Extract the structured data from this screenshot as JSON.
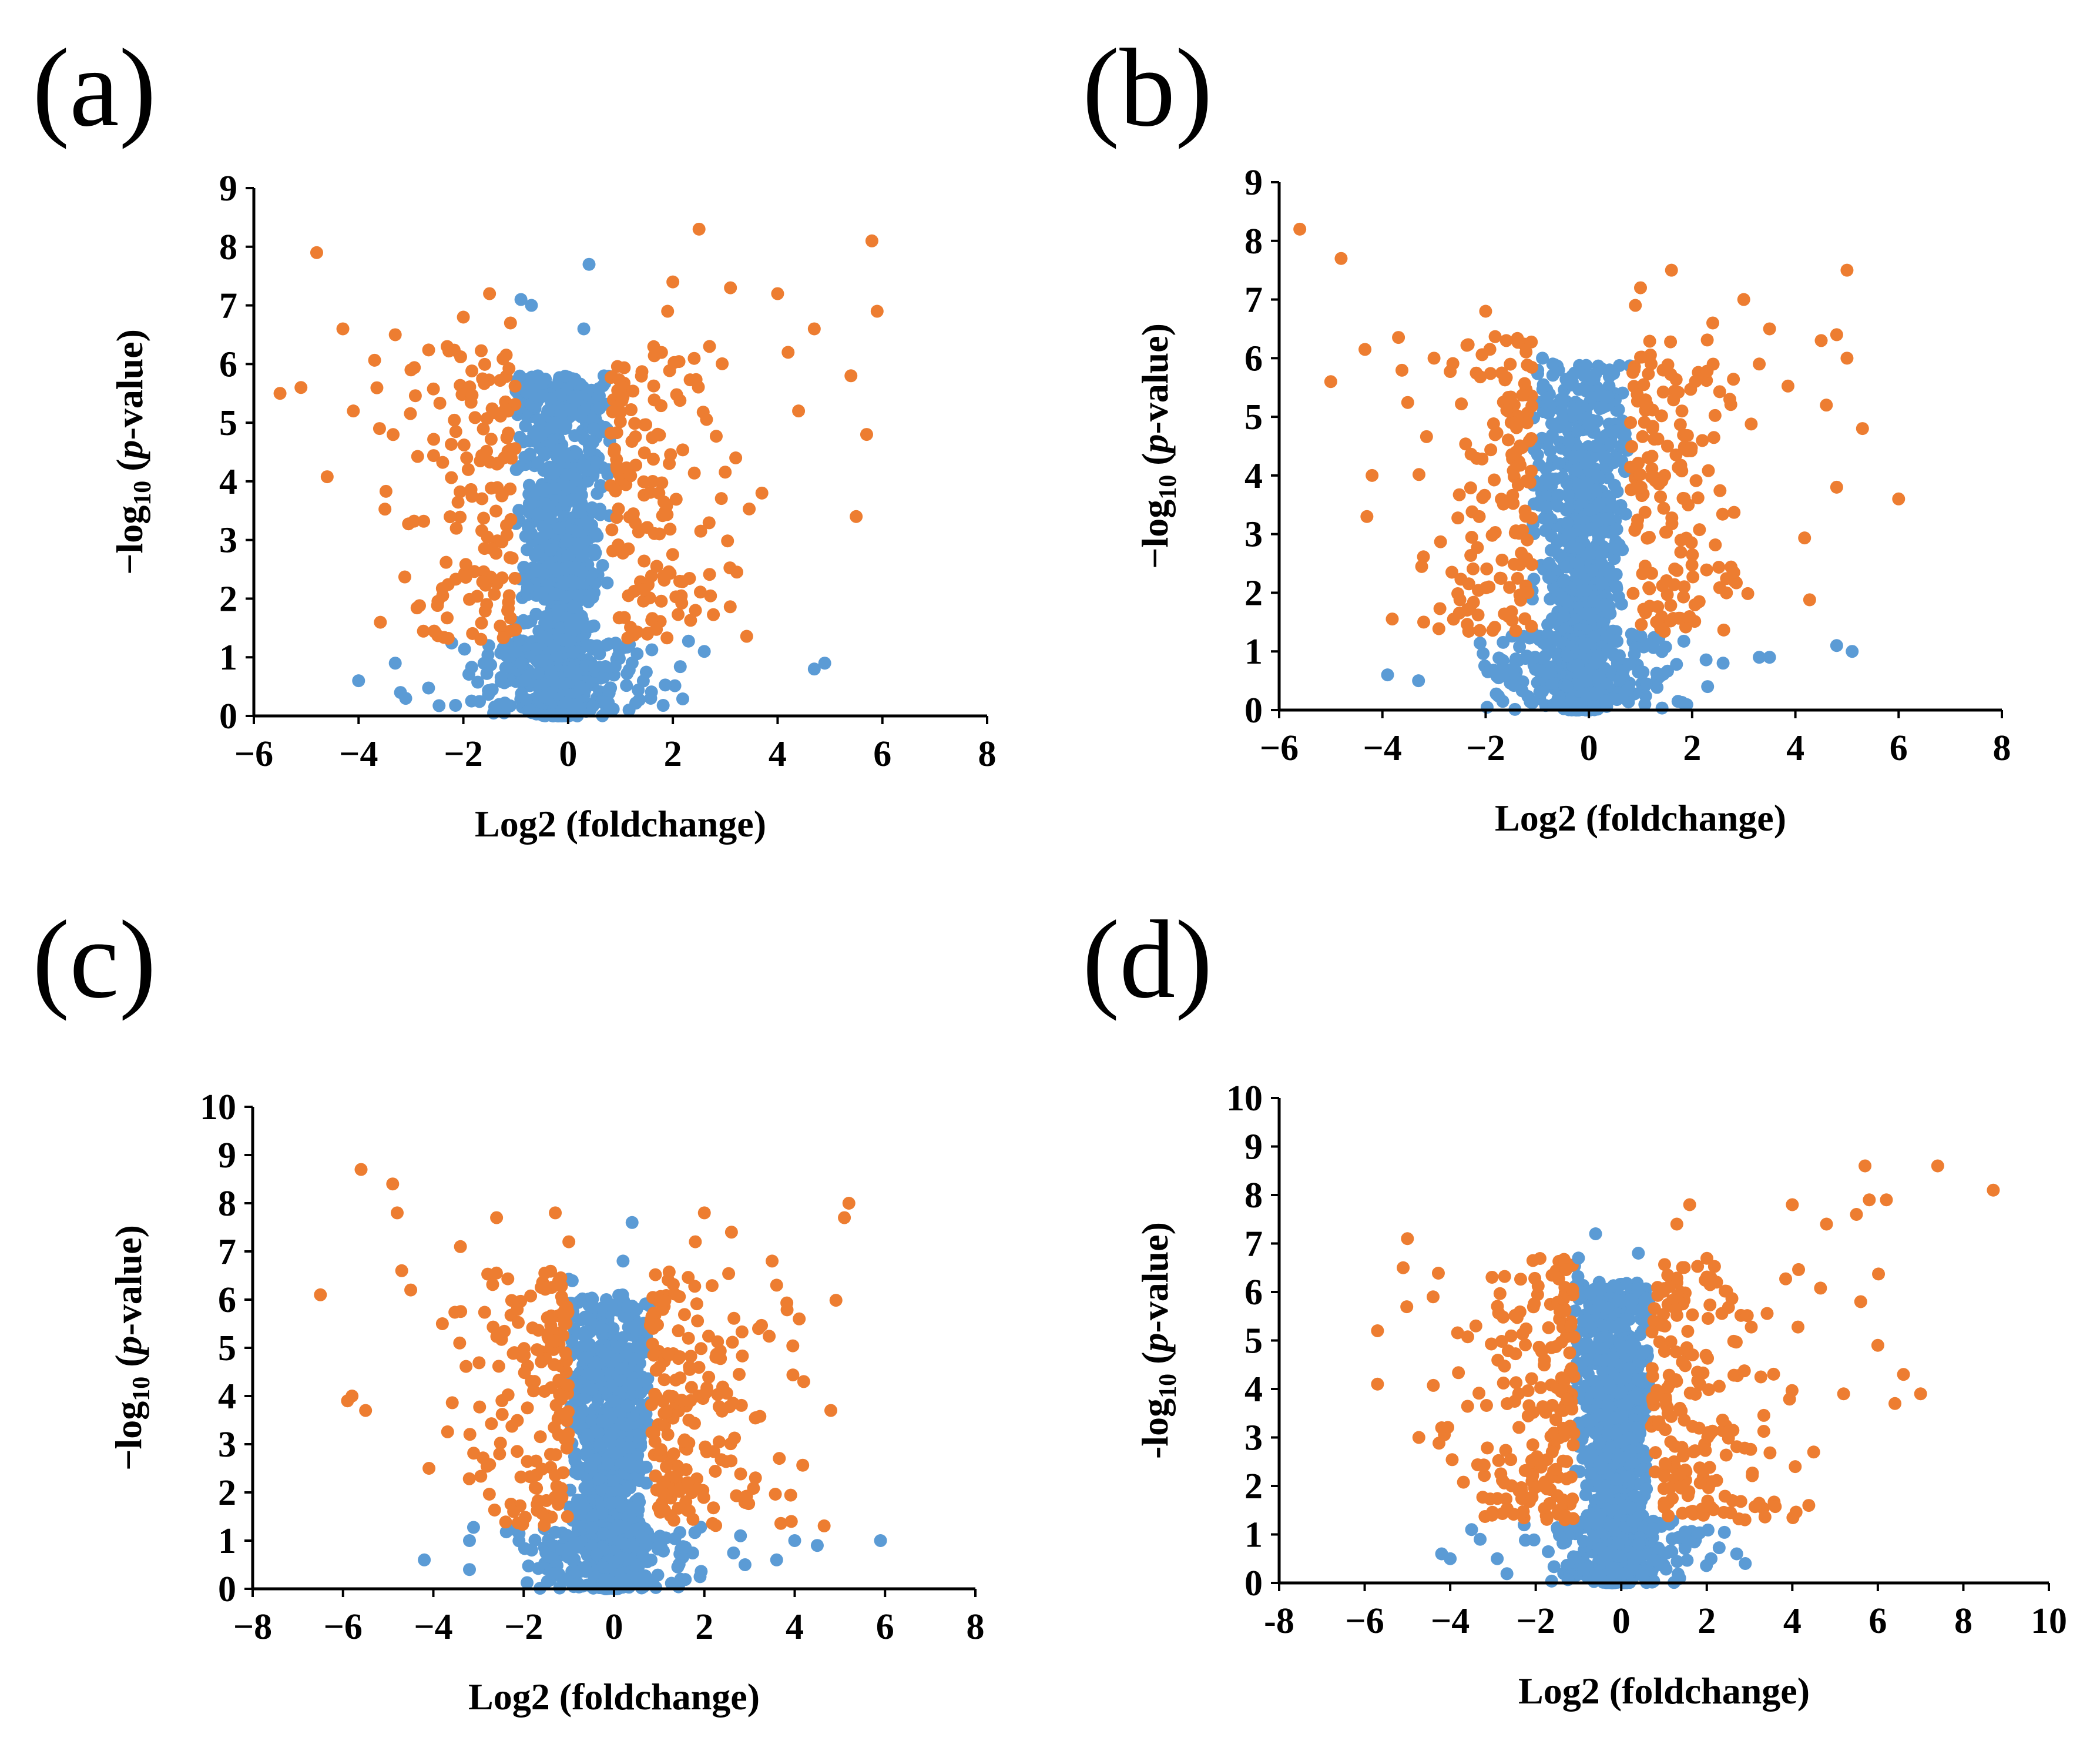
{
  "colors": {
    "significant": "#ED7D31",
    "nonsignificant": "#5B9BD5",
    "axis": "#000000"
  },
  "chart_data": [
    {
      "panel": "(a)",
      "type": "scatter",
      "xlabel": "Log2 (foldchange)",
      "ylabel_prefix": "−log",
      "ylabel_sub": "10",
      "ylabel_open": " (",
      "ylabel_ital": "p",
      "ylabel_rest": "-value)",
      "xlim": [
        -6,
        8
      ],
      "ylim": [
        0,
        9
      ],
      "xticks": [
        -6,
        -4,
        -2,
        0,
        2,
        4,
        6,
        8
      ],
      "xtick_labels": [
        "−6",
        "−4",
        "−2",
        "0",
        "2",
        "4",
        "6",
        "8"
      ],
      "yticks": [
        0,
        1,
        2,
        3,
        4,
        5,
        6,
        7,
        8,
        9
      ],
      "ytick_labels": [
        "0",
        "1",
        "2",
        "3",
        "4",
        "5",
        "6",
        "7",
        "8",
        "9"
      ],
      "fc_threshold": [
        -1.0,
        0.8
      ],
      "p_threshold": 1.3,
      "seed": 11,
      "n_dense": 1100,
      "n_scatter": 260,
      "spread": 2.6,
      "ymax_dense": 5.8,
      "orange_points": [
        [
          -4.8,
          7.9
        ],
        [
          -5.5,
          5.5
        ],
        [
          -5.1,
          5.6
        ],
        [
          -4.3,
          6.6
        ],
        [
          -4.1,
          5.2
        ],
        [
          -3.3,
          6.5
        ],
        [
          -2.0,
          6.8
        ],
        [
          -1.5,
          7.2
        ],
        [
          -3.6,
          4.9
        ],
        [
          -3.0,
          5.9
        ],
        [
          2.5,
          8.3
        ],
        [
          2.0,
          7.4
        ],
        [
          3.1,
          7.3
        ],
        [
          4.0,
          7.2
        ],
        [
          4.7,
          6.6
        ],
        [
          5.8,
          8.1
        ],
        [
          5.9,
          6.9
        ],
        [
          4.2,
          6.2
        ],
        [
          5.4,
          5.8
        ],
        [
          5.7,
          4.8
        ],
        [
          5.5,
          3.4
        ],
        [
          3.7,
          3.8
        ],
        [
          4.4,
          5.2
        ],
        [
          3.2,
          4.4
        ],
        [
          2.7,
          6.3
        ],
        [
          1.9,
          6.9
        ]
      ],
      "blue_points": [
        [
          0.4,
          7.7
        ],
        [
          -0.9,
          7.1
        ],
        [
          -0.7,
          7.0
        ],
        [
          -1.1,
          6.7
        ],
        [
          0.3,
          6.6
        ],
        [
          -4.0,
          0.6
        ],
        [
          -3.3,
          0.9
        ],
        [
          -3.2,
          0.4
        ],
        [
          4.7,
          0.8
        ],
        [
          4.9,
          0.9
        ],
        [
          2.6,
          1.1
        ],
        [
          -3.1,
          0.3
        ]
      ]
    },
    {
      "panel": "(b)",
      "type": "scatter",
      "xlabel": "Log2 (foldchange)",
      "ylabel_prefix": "−log",
      "ylabel_sub": "10",
      "ylabel_open": " (",
      "ylabel_ital": "p",
      "ylabel_rest": "-value)",
      "xlim": [
        -6,
        8
      ],
      "ylim": [
        0,
        9
      ],
      "xticks": [
        -6,
        -4,
        -2,
        0,
        2,
        4,
        6,
        8
      ],
      "xtick_labels": [
        "−6",
        "−4",
        "−2",
        "0",
        "2",
        "4",
        "6",
        "8"
      ],
      "yticks": [
        0,
        1,
        2,
        3,
        4,
        5,
        6,
        7,
        8,
        9
      ],
      "ytick_labels": [
        "0",
        "1",
        "2",
        "3",
        "4",
        "5",
        "6",
        "7",
        "8",
        "9"
      ],
      "fc_threshold": [
        -1.1,
        0.8
      ],
      "p_threshold": 1.3,
      "seed": 23,
      "n_dense": 1100,
      "n_scatter": 260,
      "spread": 2.5,
      "ymax_dense": 5.9,
      "orange_points": [
        [
          -5.6,
          8.2
        ],
        [
          -4.8,
          7.7
        ],
        [
          -5.0,
          5.6
        ],
        [
          -4.2,
          4.0
        ],
        [
          -4.3,
          3.3
        ],
        [
          -3.0,
          6.0
        ],
        [
          -2.0,
          6.8
        ],
        [
          -1.6,
          6.3
        ],
        [
          1.6,
          7.5
        ],
        [
          1.0,
          7.2
        ],
        [
          3.0,
          7.0
        ],
        [
          5.0,
          7.5
        ],
        [
          4.8,
          6.4
        ],
        [
          5.0,
          6.0
        ],
        [
          4.6,
          5.2
        ],
        [
          5.3,
          4.8
        ],
        [
          4.8,
          3.8
        ],
        [
          6.0,
          3.6
        ],
        [
          3.5,
          6.5
        ],
        [
          2.4,
          6.6
        ],
        [
          4.5,
          6.3
        ],
        [
          3.3,
          5.9
        ],
        [
          -3.2,
          1.5
        ]
      ],
      "blue_points": [
        [
          0.9,
          6.9
        ],
        [
          -0.9,
          6.0
        ],
        [
          -0.7,
          5.9
        ],
        [
          0.4,
          5.8
        ],
        [
          -3.9,
          0.6
        ],
        [
          -3.3,
          0.5
        ],
        [
          4.8,
          1.1
        ],
        [
          5.1,
          1.0
        ],
        [
          3.5,
          0.9
        ],
        [
          3.3,
          0.9
        ],
        [
          2.6,
          0.8
        ],
        [
          2.3,
          0.4
        ]
      ]
    },
    {
      "panel": "(c)",
      "type": "scatter",
      "xlabel": "Log2 (foldchange)",
      "ylabel_prefix": "−log",
      "ylabel_sub": "10",
      "ylabel_open": " (",
      "ylabel_ital": "p",
      "ylabel_rest": "-value)",
      "xlim": [
        -8,
        8
      ],
      "ylim": [
        0,
        10
      ],
      "xticks": [
        -8,
        -6,
        -4,
        -2,
        0,
        2,
        4,
        6,
        8
      ],
      "xtick_labels": [
        "−8",
        "−6",
        "−4",
        "−2",
        "0",
        "2",
        "4",
        "6",
        "8"
      ],
      "yticks": [
        0,
        1,
        2,
        3,
        4,
        5,
        6,
        7,
        8,
        9,
        10
      ],
      "ytick_labels": [
        "0",
        "1",
        "2",
        "3",
        "4",
        "5",
        "6",
        "7",
        "8",
        "9",
        "10"
      ],
      "fc_threshold": [
        -1.0,
        0.8
      ],
      "p_threshold": 1.3,
      "seed": 37,
      "n_dense": 1100,
      "n_scatter": 300,
      "spread": 2.8,
      "ymax_dense": 6.1,
      "orange_points": [
        [
          -5.6,
          8.7
        ],
        [
          -4.9,
          8.4
        ],
        [
          -4.8,
          7.8
        ],
        [
          -6.5,
          6.1
        ],
        [
          -5.9,
          3.9
        ],
        [
          -5.5,
          3.7
        ],
        [
          -5.8,
          4.0
        ],
        [
          -4.5,
          6.2
        ],
        [
          -3.4,
          7.1
        ],
        [
          -2.6,
          7.7
        ],
        [
          -1.3,
          7.8
        ],
        [
          2.0,
          7.8
        ],
        [
          2.6,
          7.4
        ],
        [
          1.8,
          7.2
        ],
        [
          5.2,
          8.0
        ],
        [
          5.1,
          7.7
        ],
        [
          3.5,
          6.8
        ],
        [
          4.1,
          5.6
        ],
        [
          4.2,
          4.3
        ],
        [
          4.8,
          3.7
        ],
        [
          3.6,
          6.3
        ],
        [
          3.2,
          5.4
        ],
        [
          -4.7,
          6.6
        ],
        [
          -3.8,
          5.5
        ]
      ],
      "blue_points": [
        [
          0.4,
          7.6
        ],
        [
          -1.0,
          7.2
        ],
        [
          0.2,
          6.8
        ],
        [
          -4.2,
          0.6
        ],
        [
          -3.2,
          1.0
        ],
        [
          -3.2,
          0.4
        ],
        [
          5.9,
          1.0
        ],
        [
          4.0,
          1.0
        ],
        [
          4.5,
          0.9
        ],
        [
          3.6,
          0.6
        ],
        [
          2.8,
          1.1
        ],
        [
          2.9,
          0.5
        ]
      ]
    },
    {
      "panel": "(d)",
      "type": "scatter",
      "xlabel": "Log2 (foldchange)",
      "ylabel_prefix": "-log",
      "ylabel_sub": "10",
      "ylabel_open": " (",
      "ylabel_ital": "p",
      "ylabel_rest": "-value)",
      "xlim": [
        -8,
        10
      ],
      "ylim": [
        0,
        10
      ],
      "xticks": [
        -8,
        -6,
        -4,
        -2,
        0,
        2,
        4,
        6,
        8,
        10
      ],
      "xtick_labels": [
        "-8",
        "−6",
        "−4",
        "−2",
        "0",
        "2",
        "4",
        "6",
        "8",
        "10"
      ],
      "yticks": [
        0,
        1,
        2,
        3,
        4,
        5,
        6,
        7,
        8,
        9,
        10
      ],
      "ytick_labels": [
        "0",
        "1",
        "2",
        "3",
        "4",
        "5",
        "6",
        "7",
        "8",
        "9",
        "10"
      ],
      "fc_threshold": [
        -1.1,
        0.7
      ],
      "p_threshold": 1.3,
      "seed": 53,
      "n_dense": 1200,
      "n_scatter": 330,
      "spread": 3.0,
      "ymax_dense": 6.2,
      "orange_points": [
        [
          7.4,
          8.6
        ],
        [
          5.7,
          8.6
        ],
        [
          8.7,
          8.1
        ],
        [
          6.2,
          7.9
        ],
        [
          5.8,
          7.9
        ],
        [
          5.5,
          7.6
        ],
        [
          4.8,
          7.4
        ],
        [
          4.0,
          7.8
        ],
        [
          1.6,
          7.8
        ],
        [
          1.3,
          7.4
        ],
        [
          -5.0,
          7.1
        ],
        [
          -5.1,
          6.5
        ],
        [
          -5.7,
          5.2
        ],
        [
          -5.7,
          4.1
        ],
        [
          -4.4,
          5.9
        ],
        [
          -3.4,
          5.3
        ],
        [
          -4.2,
          3.2
        ],
        [
          6.0,
          4.9
        ],
        [
          6.4,
          3.7
        ],
        [
          7.0,
          3.9
        ],
        [
          6.6,
          4.3
        ],
        [
          5.6,
          5.8
        ],
        [
          5.2,
          3.9
        ],
        [
          4.5,
          2.7
        ]
      ],
      "blue_points": [
        [
          -0.6,
          7.2
        ],
        [
          -1.0,
          6.7
        ],
        [
          0.4,
          6.8
        ],
        [
          -4.2,
          0.6
        ],
        [
          -4.0,
          0.5
        ],
        [
          -3.5,
          1.1
        ],
        [
          -2.9,
          0.5
        ],
        [
          2.7,
          0.6
        ],
        [
          2.9,
          0.4
        ],
        [
          2.1,
          0.5
        ],
        [
          -3.3,
          0.9
        ]
      ]
    }
  ]
}
